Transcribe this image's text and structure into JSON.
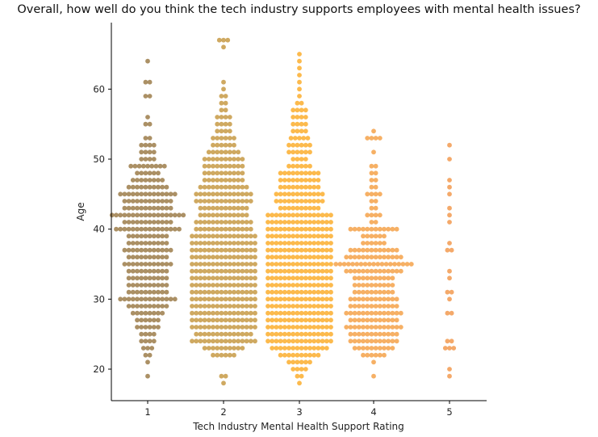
{
  "chart_data": {
    "type": "scatter",
    "subtype": "swarm",
    "title": "Overall, how well do you think the tech industry supports employees with mental health issues?",
    "xlabel": "Tech Industry Mental Health Support Rating",
    "ylabel": "Age",
    "categories": [
      "1",
      "2",
      "3",
      "4",
      "5"
    ],
    "yticks": [
      20,
      30,
      40,
      50,
      60
    ],
    "ylim": [
      15.5,
      69.5
    ],
    "colors": [
      "#9c7c4a",
      "#c79a45",
      "#fcae2e",
      "#f5a24a",
      "#f29a50"
    ],
    "series": [
      {
        "category": "1",
        "counts": {
          "19": 1,
          "21": 1,
          "22": 2,
          "23": 3,
          "24": 4,
          "25": 4,
          "26": 6,
          "27": 6,
          "28": 8,
          "29": 10,
          "30": 14,
          "31": 10,
          "32": 10,
          "33": 10,
          "34": 10,
          "35": 12,
          "36": 10,
          "37": 12,
          "38": 10,
          "39": 10,
          "40": 16,
          "41": 12,
          "42": 18,
          "43": 12,
          "44": 12,
          "45": 14,
          "46": 10,
          "47": 8,
          "48": 6,
          "49": 9,
          "50": 4,
          "51": 4,
          "52": 4,
          "53": 2,
          "55": 2,
          "56": 1,
          "59": 2,
          "61": 2,
          "64": 1
        }
      },
      {
        "category": "2",
        "counts": {
          "18": 1,
          "19": 2,
          "22": 6,
          "23": 10,
          "24": 16,
          "25": 14,
          "26": 16,
          "27": 16,
          "28": 16,
          "29": 16,
          "30": 16,
          "31": 16,
          "32": 16,
          "33": 16,
          "34": 16,
          "35": 16,
          "36": 16,
          "37": 16,
          "38": 16,
          "39": 16,
          "40": 14,
          "41": 14,
          "42": 12,
          "43": 12,
          "44": 14,
          "45": 14,
          "46": 12,
          "47": 10,
          "48": 10,
          "49": 10,
          "50": 10,
          "51": 8,
          "52": 6,
          "53": 6,
          "54": 4,
          "55": 4,
          "56": 4,
          "57": 2,
          "58": 2,
          "59": 2,
          "60": 1,
          "61": 1,
          "66": 1,
          "67": 3
        }
      },
      {
        "category": "3",
        "counts": {
          "18": 1,
          "19": 2,
          "20": 4,
          "21": 6,
          "22": 10,
          "23": 14,
          "24": 16,
          "25": 16,
          "26": 16,
          "27": 16,
          "28": 16,
          "29": 16,
          "30": 16,
          "31": 16,
          "32": 16,
          "33": 16,
          "34": 16,
          "35": 16,
          "36": 16,
          "37": 16,
          "38": 16,
          "39": 16,
          "40": 16,
          "41": 16,
          "42": 16,
          "43": 10,
          "44": 12,
          "45": 12,
          "46": 10,
          "47": 10,
          "48": 10,
          "49": 6,
          "50": 4,
          "51": 6,
          "52": 6,
          "53": 5,
          "54": 4,
          "55": 4,
          "56": 4,
          "57": 4,
          "58": 2,
          "59": 1,
          "60": 1,
          "61": 1,
          "62": 1,
          "63": 1,
          "64": 1,
          "65": 1
        }
      },
      {
        "category": "4",
        "counts": {
          "19": 1,
          "21": 1,
          "22": 6,
          "23": 10,
          "24": 12,
          "25": 12,
          "26": 14,
          "27": 12,
          "28": 14,
          "29": 12,
          "30": 12,
          "31": 10,
          "32": 10,
          "33": 10,
          "34": 14,
          "35": 19,
          "36": 14,
          "37": 12,
          "38": 6,
          "39": 6,
          "40": 12,
          "41": 2,
          "42": 4,
          "43": 2,
          "44": 2,
          "45": 4,
          "46": 2,
          "47": 2,
          "48": 2,
          "49": 2,
          "51": 1,
          "53": 4,
          "54": 1
        }
      },
      {
        "category": "5",
        "counts": {
          "19": 1,
          "20": 1,
          "23": 3,
          "24": 2,
          "28": 2,
          "30": 1,
          "31": 2,
          "33": 1,
          "34": 1,
          "37": 2,
          "38": 1,
          "41": 1,
          "42": 1,
          "43": 1,
          "45": 1,
          "46": 1,
          "47": 1,
          "50": 1,
          "52": 1
        }
      }
    ]
  }
}
